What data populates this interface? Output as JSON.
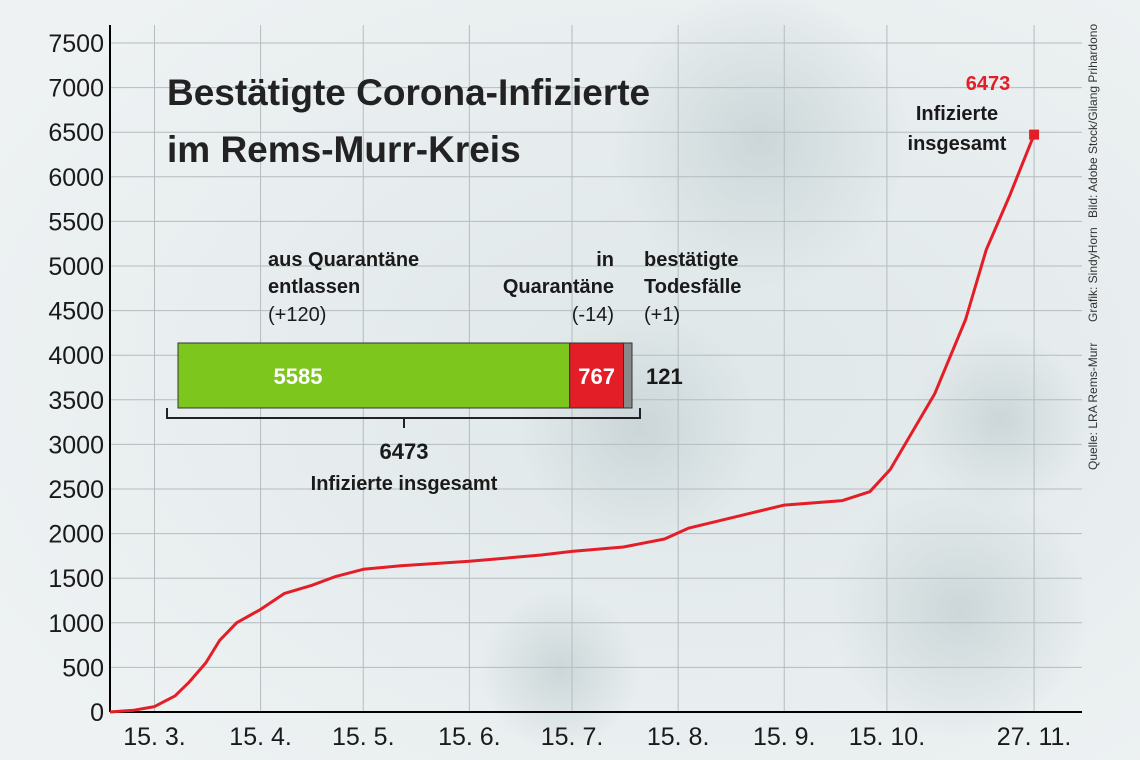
{
  "chart_data": [
    {
      "type": "line",
      "title": [
        "Bestätigte Corona-Infizierte",
        "im Rems-Murr-Kreis"
      ],
      "x": [
        62,
        69,
        75,
        81,
        85,
        90,
        94,
        99,
        106,
        113,
        121,
        128,
        136,
        147,
        167,
        188,
        197,
        212,
        224,
        231,
        246,
        259,
        276,
        284,
        290,
        303,
        312,
        318,
        325,
        332
      ],
      "values": [
        0,
        20,
        60,
        180,
        330,
        550,
        800,
        1000,
        1150,
        1330,
        1420,
        1520,
        1600,
        1640,
        1690,
        1760,
        1800,
        1850,
        1940,
        2060,
        2200,
        2320,
        2370,
        2470,
        2720,
        3570,
        4400,
        5180,
        5800,
        6473
      ],
      "color": "#e41e26",
      "xlim": [
        62,
        346
      ],
      "xticks": [
        {
          "value": 75,
          "label": "15. 3."
        },
        {
          "value": 106,
          "label": "15. 4."
        },
        {
          "value": 136,
          "label": "15. 5."
        },
        {
          "value": 167,
          "label": "15. 6."
        },
        {
          "value": 197,
          "label": "15. 7."
        },
        {
          "value": 228,
          "label": "15. 8."
        },
        {
          "value": 259,
          "label": "15. 9."
        },
        {
          "value": 289,
          "label": "15. 10."
        },
        {
          "value": 332,
          "label": "27. 11."
        }
      ],
      "ylim": [
        0,
        7500
      ],
      "yticks": [
        0,
        500,
        1000,
        1500,
        2000,
        2500,
        3000,
        3500,
        4000,
        4500,
        5000,
        5500,
        6000,
        6500,
        7000,
        7500
      ],
      "grid": true,
      "end_annotation": [
        "Infizierte",
        "insgesamt"
      ],
      "credits": [
        "Quelle: LRA Rems-Murr",
        "Grafik: SindyHorn",
        "Bild: Adobe Stock/Gilang Prihardono"
      ]
    },
    {
      "type": "stacked_bar",
      "series": [
        {
          "name": [
            "aus Quarantäne",
            "entlassen"
          ],
          "change": "(+120)",
          "color": "#7dc61e",
          "values": [
            5585
          ]
        },
        {
          "name": [
            "in",
            "Quarantäne"
          ],
          "change": "(-14)",
          "color": "#e41e26",
          "values": [
            767
          ]
        },
        {
          "name": [
            "bestätigte",
            "Todesfälle"
          ],
          "change": "(+1)",
          "color": "#8a8a8a",
          "values": [
            121
          ]
        }
      ],
      "total": 6473,
      "total_label": "Infizierte insgesamt"
    }
  ]
}
